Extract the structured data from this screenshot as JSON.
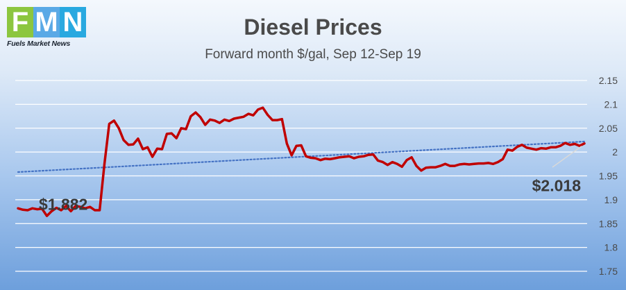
{
  "logo": {
    "letters": [
      {
        "char": "F",
        "color": "#8cc63f"
      },
      {
        "char": "M",
        "color": "#5aa9e6"
      },
      {
        "char": "N",
        "color": "#29a9e0"
      }
    ],
    "caption": "Fuels Market News"
  },
  "colors": {
    "series": "#c00000",
    "trend": "#4472c4",
    "gridline": "#ffffff"
  },
  "chart_data": {
    "type": "line",
    "title": "Diesel Prices",
    "subtitle": "Forward month $/gal, Sep 12-Sep 19",
    "ylim": [
      1.75,
      2.15
    ],
    "yticks": [
      "2.15",
      "2.1",
      "2.05",
      "2",
      "1.95",
      "1.9",
      "1.85",
      "1.8",
      "1.75"
    ],
    "ytick_values": [
      2.15,
      2.1,
      2.05,
      2.0,
      1.95,
      1.9,
      1.85,
      1.8,
      1.75
    ],
    "grid": true,
    "series": [
      {
        "values": [
          1.882,
          1.879,
          1.878,
          1.882,
          1.88,
          1.881,
          1.866,
          1.876,
          1.883,
          1.878,
          1.887,
          1.876,
          1.887,
          1.885,
          1.882,
          1.885,
          1.878,
          1.878,
          1.975,
          2.059,
          2.066,
          2.05,
          2.025,
          2.015,
          2.016,
          2.028,
          2.006,
          2.01,
          1.99,
          2.007,
          2.006,
          2.038,
          2.039,
          2.029,
          2.05,
          2.048,
          2.075,
          2.083,
          2.073,
          2.057,
          2.068,
          2.066,
          2.061,
          2.068,
          2.065,
          2.07,
          2.072,
          2.074,
          2.08,
          2.077,
          2.089,
          2.093,
          2.078,
          2.067,
          2.067,
          2.069,
          2.018,
          1.993,
          2.013,
          2.014,
          1.991,
          1.988,
          1.987,
          1.983,
          1.986,
          1.985,
          1.987,
          1.989,
          1.99,
          1.991,
          1.987,
          1.99,
          1.991,
          1.994,
          1.995,
          1.982,
          1.979,
          1.973,
          1.979,
          1.975,
          1.969,
          1.983,
          1.989,
          1.971,
          1.961,
          1.967,
          1.968,
          1.968,
          1.971,
          1.975,
          1.971,
          1.971,
          1.974,
          1.975,
          1.974,
          1.975,
          1.976,
          1.976,
          1.977,
          1.975,
          1.979,
          1.985,
          2.005,
          2.003,
          2.011,
          2.015,
          2.009,
          2.007,
          2.005,
          2.008,
          2.007,
          2.01,
          2.01,
          2.013,
          2.019,
          2.015,
          2.017,
          2.013,
          2.018
        ]
      }
    ],
    "trendline": {
      "style": "dotted",
      "start": 1.958,
      "end": 2.022
    },
    "annotations": [
      {
        "text": "$1.882",
        "anchor": "start"
      },
      {
        "text": "$2.018",
        "anchor": "end"
      }
    ]
  }
}
